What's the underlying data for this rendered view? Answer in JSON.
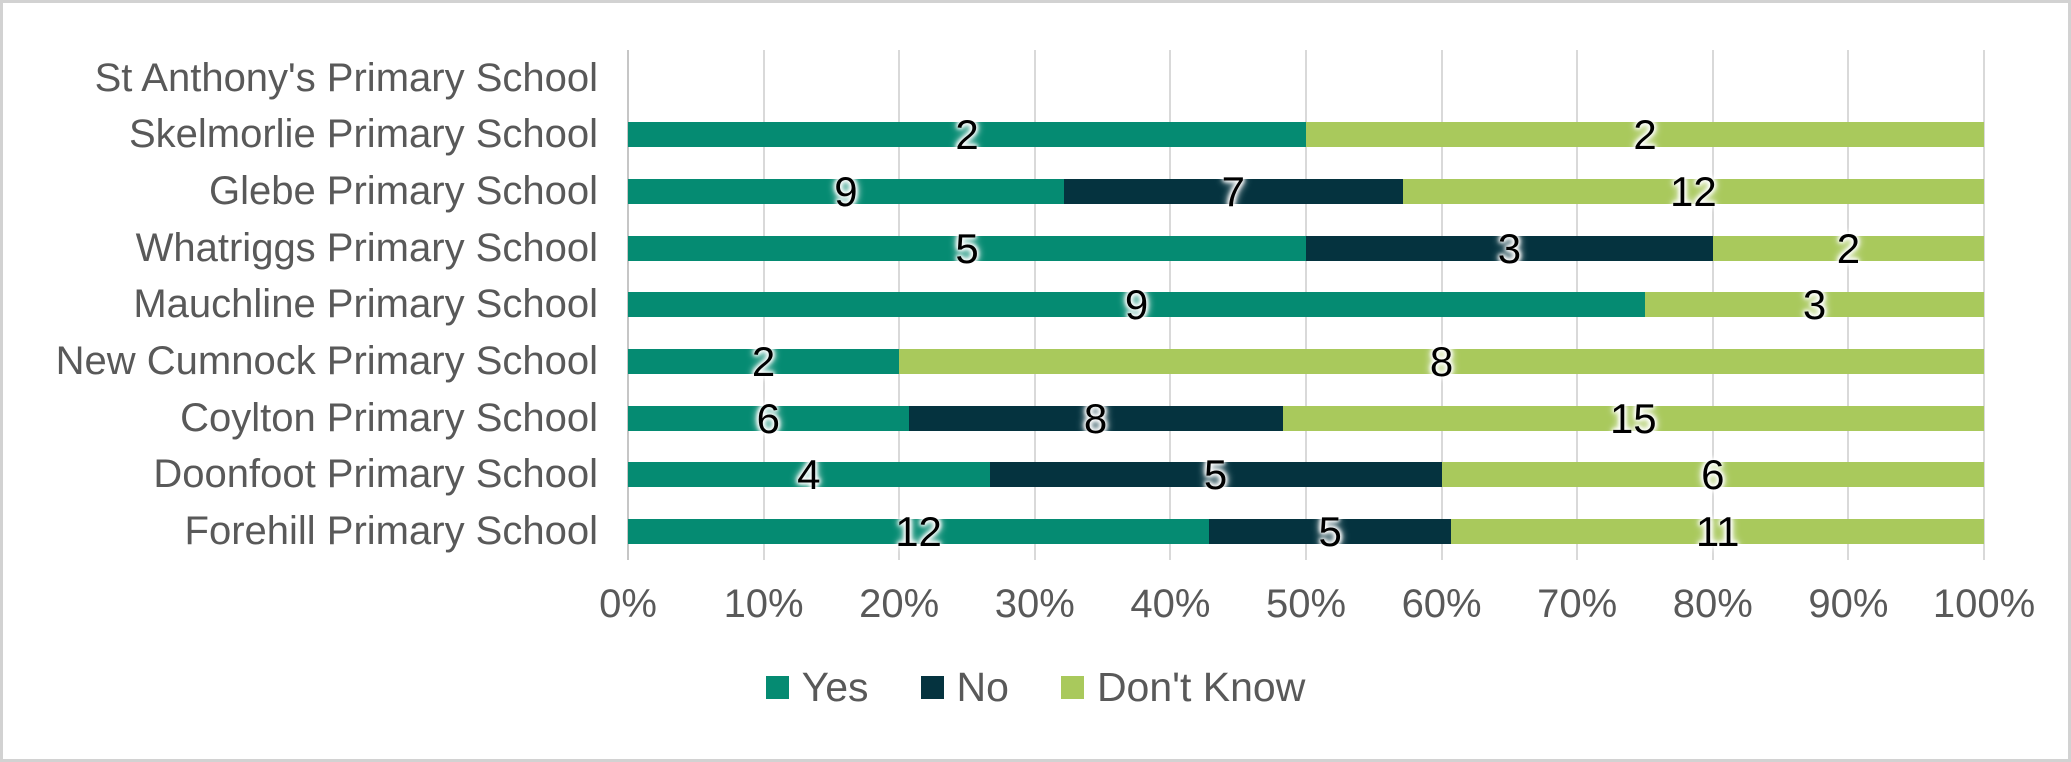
{
  "style": {
    "background": "#ffffff",
    "frame_border_color": "#d2d2d2",
    "text_color": "#595959",
    "gridline_color": "#d9d9d9",
    "value_label_color": "#000000"
  },
  "chart_data": {
    "type": "bar",
    "subtype": "stacked-100-percent",
    "orientation": "horizontal",
    "title": "",
    "categories": [
      "St Anthony's Primary School",
      "Skelmorlie Primary School",
      "Glebe Primary School",
      "Whatriggs Primary School",
      "Mauchline Primary School",
      "New Cumnock Primary School",
      "Coylton Primary School",
      "Doonfoot Primary School",
      "Forehill Primary School"
    ],
    "series": [
      {
        "name": "Yes",
        "color": "#058b72",
        "values": [
          null,
          2,
          9,
          5,
          9,
          2,
          6,
          4,
          12
        ]
      },
      {
        "name": "No",
        "color": "#05333f",
        "values": [
          null,
          0,
          7,
          3,
          0,
          0,
          8,
          5,
          5
        ]
      },
      {
        "name": "Don't Know",
        "color": "#a9c95c",
        "values": [
          null,
          2,
          12,
          2,
          3,
          8,
          15,
          6,
          11
        ]
      }
    ],
    "x_axis": {
      "min": 0,
      "max": 1,
      "tick_labels": [
        "0%",
        "10%",
        "20%",
        "30%",
        "40%",
        "50%",
        "60%",
        "70%",
        "80%",
        "90%",
        "100%"
      ]
    },
    "grid": true,
    "legend": {
      "position": "bottom",
      "entries": [
        "Yes",
        "No",
        "Don't Know"
      ]
    },
    "data_labels": "segment values shown centered on segments in black with white glow"
  }
}
